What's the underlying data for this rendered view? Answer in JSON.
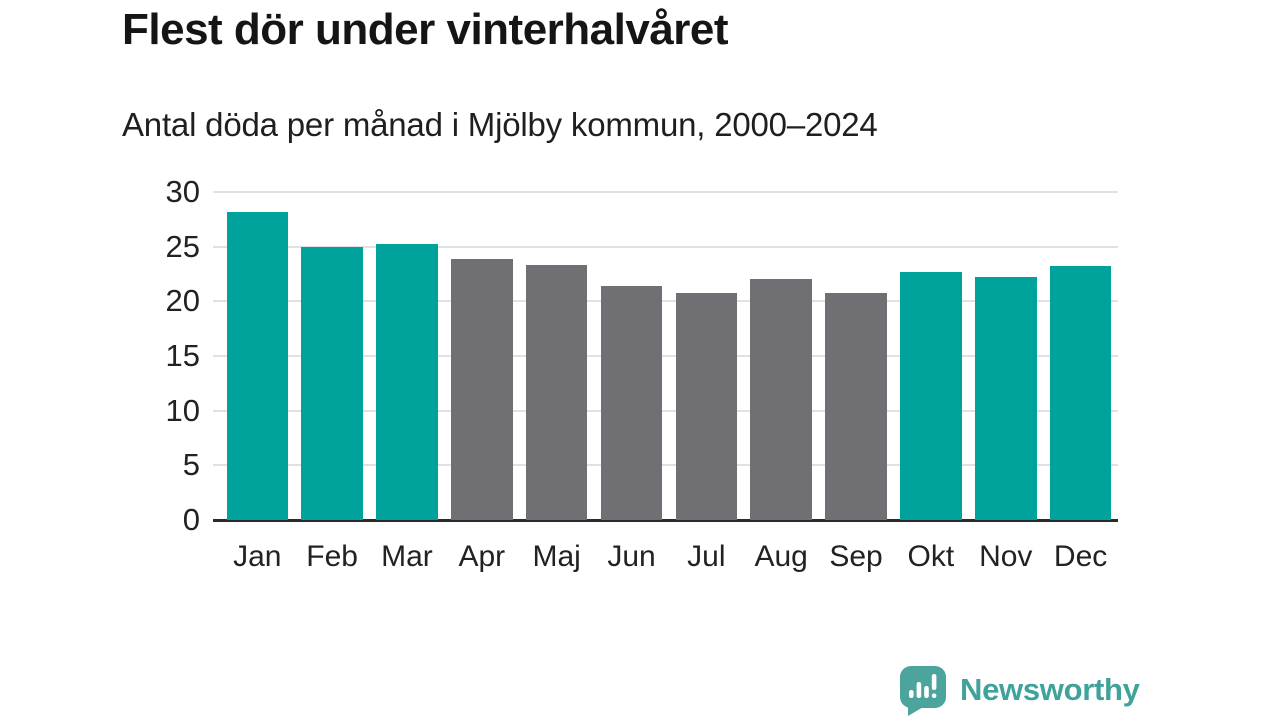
{
  "header": {
    "title": "Flest dör under vinterhalvåret",
    "subtitle": "Antal döda per månad i Mjölby kommun, 2000–2024"
  },
  "chart_data": {
    "type": "bar",
    "title": "Flest dör under vinterhalvåret",
    "subtitle": "Antal döda per månad i Mjölby kommun, 2000–2024",
    "categories": [
      "Jan",
      "Feb",
      "Mar",
      "Apr",
      "Maj",
      "Jun",
      "Jul",
      "Aug",
      "Sep",
      "Okt",
      "Nov",
      "Dec"
    ],
    "values": [
      28.2,
      25.0,
      25.2,
      23.9,
      23.3,
      21.4,
      20.8,
      22.0,
      20.8,
      22.7,
      22.2,
      23.2
    ],
    "bar_color_keys": [
      "highlight",
      "highlight",
      "highlight",
      "default",
      "default",
      "default",
      "default",
      "default",
      "default",
      "highlight",
      "highlight",
      "highlight"
    ],
    "colors": {
      "highlight": "#00a39b",
      "default": "#6f6f74",
      "gridline": "#e1e1e1",
      "axis": "#2b2b2b",
      "tick_text": "#222222"
    },
    "xlabel": "",
    "ylabel": "",
    "ylim": [
      0,
      30
    ],
    "yticks": [
      0,
      5,
      10,
      15,
      20,
      25,
      30
    ],
    "grid": "horizontal",
    "legend_position": "none"
  },
  "footer": {
    "brand": "Newsworthy",
    "logo_icon": "newsworthy-speech-bubble-bar-chart-icon",
    "logo_color": "#4ba59d",
    "text_color": "#3fa29b",
    "logo_mark_color": "#ffffff"
  }
}
